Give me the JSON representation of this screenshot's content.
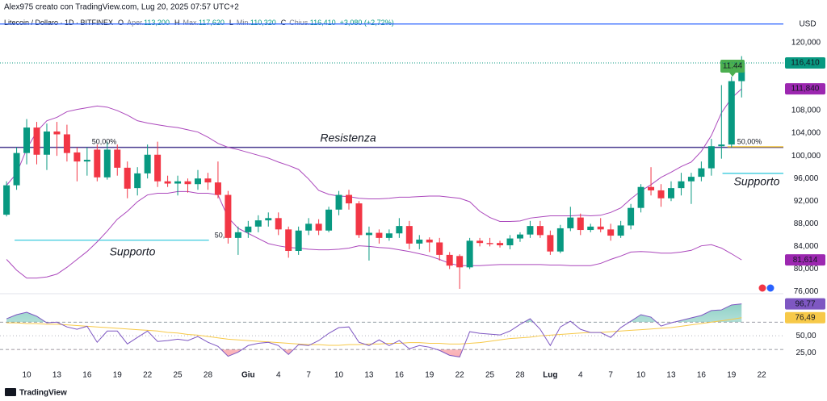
{
  "header": {
    "author": "Alex975 creato con TradingView.com, Lug 20, 2025 07:57 UTC+2",
    "symbol": "Litecoin / Dollaro · 1D · BITFINEX",
    "ohlc": [
      {
        "key": "O",
        "label": "Aper.",
        "value": "113,200"
      },
      {
        "key": "H",
        "label": "Max.",
        "value": "117,620"
      },
      {
        "key": "L",
        "label": "Min.",
        "value": "110,320"
      },
      {
        "key": "C",
        "label": "Chius.",
        "value": "116,410"
      }
    ],
    "change": "+3,080 (+2,72%)",
    "currency": "USD",
    "footer": "TradingView"
  },
  "chart_data": [
    {
      "type": "candlestick",
      "up_color": "#089981",
      "down_color": "#f23645",
      "grid": false,
      "xlim": [
        -0.65,
        77.15
      ],
      "ylim": [
        76000,
        124400
      ],
      "xticks": [
        {
          "value": 2,
          "label": "10"
        },
        {
          "value": 5,
          "label": "13"
        },
        {
          "value": 8,
          "label": "16"
        },
        {
          "value": 11,
          "label": "19"
        },
        {
          "value": 14,
          "label": "22"
        },
        {
          "value": 17,
          "label": "25"
        },
        {
          "value": 20,
          "label": "28"
        },
        {
          "value": 24,
          "label": "Giu"
        },
        {
          "value": 27,
          "label": "4"
        },
        {
          "value": 30,
          "label": "7"
        },
        {
          "value": 33,
          "label": "10"
        },
        {
          "value": 36,
          "label": "13"
        },
        {
          "value": 39,
          "label": "16"
        },
        {
          "value": 42,
          "label": "19"
        },
        {
          "value": 45,
          "label": "22"
        },
        {
          "value": 48,
          "label": "25"
        },
        {
          "value": 51,
          "label": "28"
        },
        {
          "value": 54,
          "label": "Lug"
        },
        {
          "value": 57,
          "label": "4"
        },
        {
          "value": 60,
          "label": "7"
        },
        {
          "value": 63,
          "label": "10"
        },
        {
          "value": 66,
          "label": "13"
        },
        {
          "value": 69,
          "label": "16"
        },
        {
          "value": 72,
          "label": "19"
        },
        {
          "value": 75,
          "label": "22"
        }
      ],
      "yticks": [
        {
          "value": 76000,
          "label": "76,000"
        },
        {
          "value": 80000,
          "label": "80,000"
        },
        {
          "value": 84000,
          "label": "84,000"
        },
        {
          "value": 88000,
          "label": "88,000"
        },
        {
          "value": 92000,
          "label": "92,000"
        },
        {
          "value": 96000,
          "label": "96,000"
        },
        {
          "value": 100000,
          "label": "100,000"
        },
        {
          "value": 104000,
          "label": "104,000"
        },
        {
          "value": 108000,
          "label": "108,000"
        },
        {
          "value": 112000,
          "label": "112,000"
        },
        {
          "value": 116000,
          "label": "116,000"
        },
        {
          "value": 120000,
          "label": "120,000"
        }
      ],
      "open": [
        89600,
        94800,
        100500,
        105000,
        100200,
        104300,
        103800,
        100600,
        99000,
        101100,
        96200,
        101100,
        97900,
        94300,
        96900,
        100200,
        95500,
        95100,
        95500,
        95000,
        96000,
        95300,
        93100,
        85500,
        86500,
        87500,
        88600,
        89000,
        87000,
        83200,
        86800,
        88000,
        86800,
        90500,
        93100,
        91600,
        86000,
        86400,
        85500,
        86300,
        87600,
        84500,
        85200,
        84700,
        82500,
        82300,
        80300,
        85000,
        84600,
        84600,
        84200,
        85400,
        86100,
        87600,
        86000,
        83100,
        87200,
        89100,
        86900,
        87500,
        87000,
        85900,
        87700,
        90800,
        94500,
        93900,
        92500,
        94300,
        95500,
        96300,
        97800,
        101700,
        102000,
        113200
      ],
      "high": [
        95500,
        101500,
        106500,
        106000,
        105700,
        106000,
        105500,
        101500,
        101500,
        102000,
        102500,
        102000,
        99000,
        98000,
        102000,
        102500,
        96500,
        96500,
        96000,
        97500,
        97000,
        99000,
        93800,
        87500,
        88500,
        89500,
        90000,
        90000,
        87500,
        87500,
        89000,
        88800,
        91000,
        93800,
        94000,
        92000,
        87500,
        87000,
        87000,
        89000,
        88500,
        86000,
        85600,
        85500,
        83000,
        82600,
        85500,
        85500,
        85500,
        85000,
        86000,
        86500,
        88500,
        88500,
        86800,
        87800,
        91000,
        89800,
        88000,
        89000,
        88000,
        88500,
        91500,
        95000,
        98000,
        95000,
        95500,
        97000,
        97000,
        99000,
        103000,
        112500,
        114000,
        117620
      ],
      "low": [
        89300,
        94000,
        98500,
        98500,
        97500,
        100000,
        99000,
        95500,
        96500,
        95500,
        95800,
        96500,
        92500,
        93000,
        96000,
        94500,
        94500,
        93000,
        93500,
        94000,
        94000,
        92500,
        84500,
        82500,
        85500,
        86500,
        87500,
        86000,
        82000,
        82500,
        86000,
        86000,
        86500,
        89500,
        90500,
        85500,
        81500,
        84500,
        85000,
        85500,
        83500,
        83500,
        83000,
        81500,
        80000,
        76500,
        80000,
        84000,
        84000,
        83800,
        83500,
        84800,
        85500,
        85500,
        82500,
        82800,
        86700,
        86000,
        86500,
        86500,
        85000,
        85500,
        87000,
        90000,
        93000,
        91000,
        92000,
        93000,
        91500,
        95500,
        96500,
        99500,
        101500,
        110320
      ],
      "close": [
        94800,
        100500,
        105000,
        100200,
        104300,
        103800,
        100500,
        99000,
        99300,
        96200,
        101100,
        97900,
        94200,
        96900,
        100200,
        95500,
        95100,
        95500,
        95000,
        96000,
        95300,
        93100,
        85500,
        86500,
        87500,
        88600,
        89000,
        87000,
        83200,
        86800,
        88000,
        86800,
        90500,
        93100,
        91600,
        86000,
        86400,
        85500,
        86300,
        87600,
        84500,
        85200,
        84700,
        82500,
        80600,
        80300,
        85000,
        84600,
        84400,
        84200,
        85400,
        86100,
        87600,
        86000,
        83100,
        87200,
        89100,
        86900,
        87500,
        87000,
        85900,
        87700,
        90800,
        94500,
        93900,
        92500,
        94300,
        95500,
        96300,
        97800,
        101700,
        102000,
        113200,
        116410
      ],
      "bands": [
        {
          "color": "#ab47bc",
          "values": [
            94800,
            96900,
            101200,
            104300,
            106200,
            106800,
            107800,
            108200,
            108500,
            108800,
            108600,
            108000,
            107200,
            106200,
            105800,
            105500,
            105200,
            105000,
            104600,
            104200,
            103300,
            102200,
            101500,
            101100,
            100600,
            100100,
            99600,
            98900,
            98300,
            97600,
            95900,
            93900,
            93200,
            92900,
            92800,
            92500,
            92400,
            92400,
            92500,
            92700,
            92700,
            92800,
            92900,
            92900,
            92700,
            92500,
            91900,
            90200,
            89100,
            88400,
            88400,
            88500,
            89000,
            89200,
            89400,
            89400,
            89400,
            89500,
            89400,
            89500,
            90000,
            90800,
            92400,
            93800,
            94900,
            96200,
            97100,
            98100,
            98900,
            100800,
            103600,
            107600,
            110200,
            111840
          ]
        },
        {
          "color": "#ab47bc",
          "values": [
            81700,
            79800,
            78400,
            78400,
            78600,
            79100,
            80300,
            81700,
            83100,
            84800,
            86700,
            88800,
            90200,
            91900,
            93100,
            93400,
            93400,
            93700,
            93700,
            93400,
            93400,
            93100,
            89100,
            87200,
            86300,
            85400,
            84500,
            84100,
            83800,
            83700,
            83500,
            83400,
            83400,
            83500,
            83700,
            84100,
            84000,
            83800,
            83700,
            83400,
            83100,
            82700,
            82300,
            81700,
            81000,
            80600,
            80600,
            80600,
            80700,
            80800,
            80800,
            80800,
            80800,
            80800,
            80700,
            80700,
            80600,
            80600,
            80600,
            81000,
            81700,
            82300,
            83000,
            83100,
            83000,
            82800,
            82800,
            83000,
            83300,
            84100,
            84300,
            83700,
            82700,
            81614
          ]
        }
      ],
      "levels": [
        {
          "value": 123300,
          "color": "#2962ff"
        },
        {
          "value": 101500,
          "color": "#4a3b8f",
          "label": "Resistenza",
          "label_color": "#ab47bc"
        },
        {
          "value": 85100,
          "color": "#26c6da",
          "x_range": [
            0.8,
            20.1
          ],
          "label": "Supporto",
          "label_color": "#26c6da"
        },
        {
          "value": 96900,
          "color": "#26c6da",
          "x_range": [
            71.1,
            77.15
          ],
          "label": "Supporto",
          "label_color": "#26c6da"
        },
        {
          "value": 101600,
          "color": "#f0b90b",
          "x_range": [
            71.6,
            77.15
          ],
          "label": "50,00%",
          "label_color": "#9c6ccf"
        }
      ],
      "notes": [
        {
          "text": "50,00%",
          "color": "#9c6ccf"
        },
        {
          "text": "50,",
          "color": "#8fd6e0"
        },
        {
          "text": "11.44",
          "color": "#4caf50"
        }
      ],
      "price_tags": [
        {
          "value": 116410,
          "label": "116,410",
          "color": "#089981"
        },
        {
          "value": 111840,
          "label": "111,840",
          "color": "#9c27b0"
        },
        {
          "value": 81614,
          "label": "81,614",
          "color": "#9c27b0"
        }
      ]
    },
    {
      "type": "line",
      "xlim": [
        -0.65,
        77.15
      ],
      "ylim": [
        10,
        107
      ],
      "yticks": [
        {
          "value": 25,
          "label": "25,00"
        },
        {
          "value": 50,
          "label": "50,00"
        }
      ],
      "bands": [
        70,
        30
      ],
      "midline": 50,
      "series": [
        {
          "color": "#7e57c2",
          "values": [
            75,
            81,
            84.5,
            78.6,
            69,
            70,
            63,
            59.5,
            64,
            40.5,
            57,
            57,
            38,
            47.6,
            57,
            41.7,
            43,
            45,
            43,
            49,
            40.5,
            34.5,
            20,
            26,
            35.7,
            39,
            40.5,
            35.7,
            22.6,
            37,
            35.7,
            43,
            53.6,
            62,
            63,
            40.5,
            35.7,
            44,
            35.7,
            43,
            31,
            35.7,
            33.3,
            28.6,
            21.4,
            19,
            56,
            53.6,
            52.4,
            51.2,
            57,
            66.7,
            75,
            59.5,
            35.7,
            63,
            71.4,
            59.5,
            54.8,
            54.8,
            47.6,
            62,
            71.4,
            81,
            77.4,
            64.3,
            69,
            72.6,
            76.2,
            79.8,
            87,
            88,
            95.2,
            96.77
          ]
        },
        {
          "color": "#f7c948",
          "values": [
            69,
            69,
            68,
            68,
            67,
            67,
            66,
            65,
            64,
            63,
            62,
            61,
            60,
            59,
            58,
            57,
            55,
            54,
            52,
            51,
            49,
            47,
            45,
            44,
            43,
            42,
            41,
            40,
            39,
            38,
            37,
            37,
            36,
            36,
            37,
            37,
            38,
            38,
            39,
            39,
            40,
            40,
            39,
            39,
            38,
            38,
            39,
            40,
            42,
            44,
            46,
            47,
            48,
            50,
            51,
            52,
            53,
            54,
            55,
            55,
            56,
            57,
            58,
            59,
            60,
            61,
            62,
            64,
            66,
            68,
            70,
            72,
            74,
            76.49
          ]
        }
      ],
      "tags": [
        {
          "value": 96.77,
          "label": "96,77",
          "color": "#7e57c2",
          "text_color": "#ffffff"
        },
        {
          "value": 76.49,
          "label": "76,49",
          "color": "#f7c948",
          "text_color": "#131722"
        }
      ]
    }
  ]
}
